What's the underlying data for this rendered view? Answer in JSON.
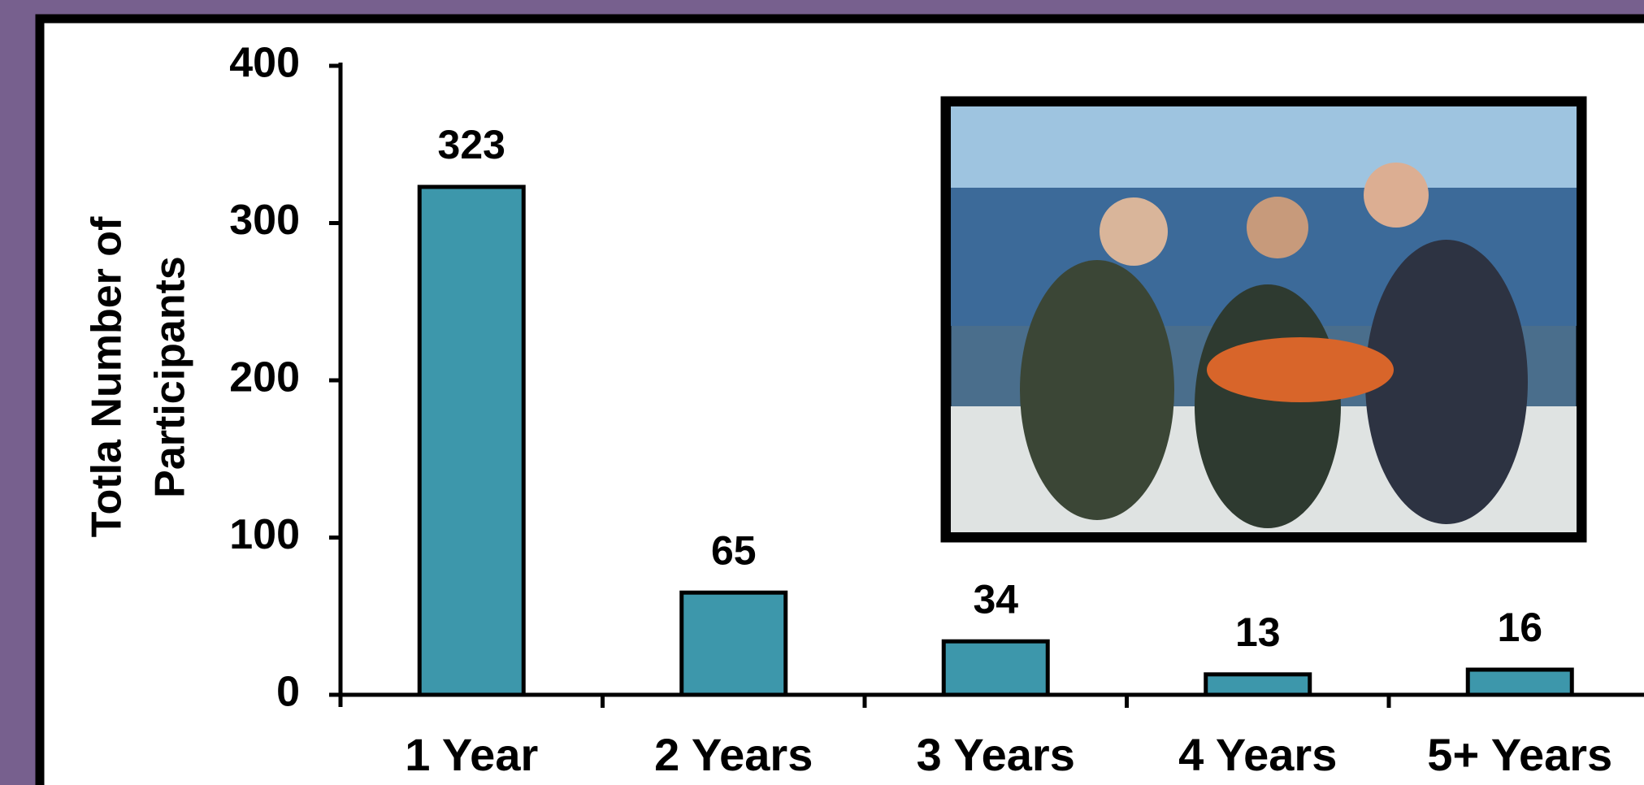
{
  "chart_data": {
    "type": "bar",
    "ylabel": [
      "Totla Number of",
      "Participants"
    ],
    "categories": [
      "1 Year",
      "2 Years",
      "3 Years",
      "4 Years",
      "5+ Years"
    ],
    "values": [
      323,
      65,
      34,
      13,
      16
    ],
    "color": "#3d97ab",
    "ylim": [
      0,
      400
    ],
    "yticks": [
      0,
      100,
      200,
      300,
      400
    ]
  }
}
